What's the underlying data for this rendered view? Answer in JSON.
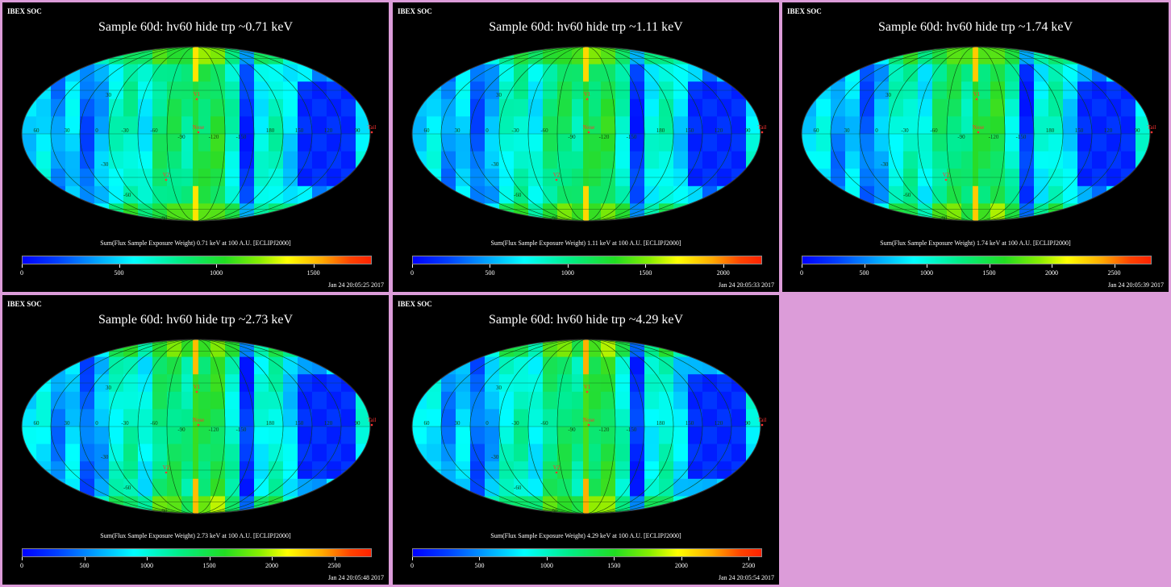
{
  "panels": [
    {
      "header": "IBEX SOC",
      "title": "Sample 60d: hv60 hide trp ~0.71 keV",
      "colorbar_label": "Sum(Flux Sample Exposure Weight)  0.71 keV at 100 A.U. [ECLIPJ2000]",
      "timestamp": "Jan 24 20:05:25 2017",
      "cbar_max": 1800,
      "ticks": [
        "0",
        "500",
        "1000",
        "1500"
      ]
    },
    {
      "header": "IBEX SOC",
      "title": "Sample 60d: hv60 hide trp ~1.11 keV",
      "colorbar_label": "Sum(Flux Sample Exposure Weight)  1.11 keV at 100 A.U. [ECLIPJ2000]",
      "timestamp": "Jan 24 20:05:33 2017",
      "cbar_max": 2250,
      "ticks": [
        "0",
        "500",
        "1000",
        "1500",
        "2000"
      ]
    },
    {
      "header": "IBEX SOC",
      "title": "Sample 60d: hv60 hide trp ~1.74 keV",
      "colorbar_label": "Sum(Flux Sample Exposure Weight)  1.74 keV at 100 A.U. [ECLIPJ2000]",
      "timestamp": "Jan 24 20:05:39 2017",
      "cbar_max": 2800,
      "ticks": [
        "0",
        "500",
        "1000",
        "1500",
        "2000",
        "2500"
      ]
    },
    {
      "header": "IBEX SOC",
      "title": "Sample 60d: hv60 hide trp ~2.73 keV",
      "colorbar_label": "Sum(Flux Sample Exposure Weight)  2.73 keV at 100 A.U. [ECLIPJ2000]",
      "timestamp": "Jan 24 20:05:48 2017",
      "cbar_max": 2800,
      "ticks": [
        "0",
        "500",
        "1000",
        "1500",
        "2000",
        "2500"
      ]
    },
    {
      "header": "IBEX SOC",
      "title": "Sample 60d: hv60 hide trp ~4.29 keV",
      "colorbar_label": "Sum(Flux Sample Exposure Weight)  4.29 keV at 100 A.U. [ECLIPJ2000]",
      "timestamp": "Jan 24 20:05:54 2017",
      "cbar_max": 2600,
      "ticks": [
        "0",
        "500",
        "1000",
        "1500",
        "2000",
        "2500"
      ]
    }
  ],
  "map_labels": {
    "markers": [
      "V1",
      "Nose",
      "V2",
      "Tail"
    ],
    "longitudes": [
      "60",
      "30",
      "0",
      "-30",
      "-60",
      "-90",
      "-120",
      "-150",
      "180",
      "150",
      "120",
      "90"
    ],
    "latitudes": [
      "30",
      "-30",
      "-60",
      "-90"
    ]
  },
  "chart_data": [
    {
      "type": "heatmap",
      "title": "Sample 60d: hv60 hide trp ~0.71 keV",
      "energy_keV": 0.71,
      "colorbar_range": [
        0,
        1800
      ],
      "colorbar_ticks": [
        0,
        500,
        1000,
        1500
      ],
      "projection": "Mollweide (ecliptic, J2000)",
      "distance_AU": 100
    },
    {
      "type": "heatmap",
      "title": "Sample 60d: hv60 hide trp ~1.11 keV",
      "energy_keV": 1.11,
      "colorbar_range": [
        0,
        2250
      ],
      "colorbar_ticks": [
        0,
        500,
        1000,
        1500,
        2000
      ],
      "projection": "Mollweide (ecliptic, J2000)",
      "distance_AU": 100
    },
    {
      "type": "heatmap",
      "title": "Sample 60d: hv60 hide trp ~1.74 keV",
      "energy_keV": 1.74,
      "colorbar_range": [
        0,
        2800
      ],
      "colorbar_ticks": [
        0,
        500,
        1000,
        1500,
        2000,
        2500
      ],
      "projection": "Mollweide (ecliptic, J2000)",
      "distance_AU": 100
    },
    {
      "type": "heatmap",
      "title": "Sample 60d: hv60 hide trp ~2.73 keV",
      "energy_keV": 2.73,
      "colorbar_range": [
        0,
        2800
      ],
      "colorbar_ticks": [
        0,
        500,
        1000,
        1500,
        2000,
        2500
      ],
      "projection": "Mollweide (ecliptic, J2000)",
      "distance_AU": 100
    },
    {
      "type": "heatmap",
      "title": "Sample 60d: hv60 hide trp ~4.29 keV",
      "energy_keV": 4.29,
      "colorbar_range": [
        0,
        2600
      ],
      "colorbar_ticks": [
        0,
        500,
        1000,
        1500,
        2000,
        2500
      ],
      "projection": "Mollweide (ecliptic, J2000)",
      "distance_AU": 100
    }
  ],
  "colors": {
    "background": "#dc9cd9",
    "panel": "#000000",
    "marker": "#ff3333",
    "grid_label": "#116611"
  }
}
